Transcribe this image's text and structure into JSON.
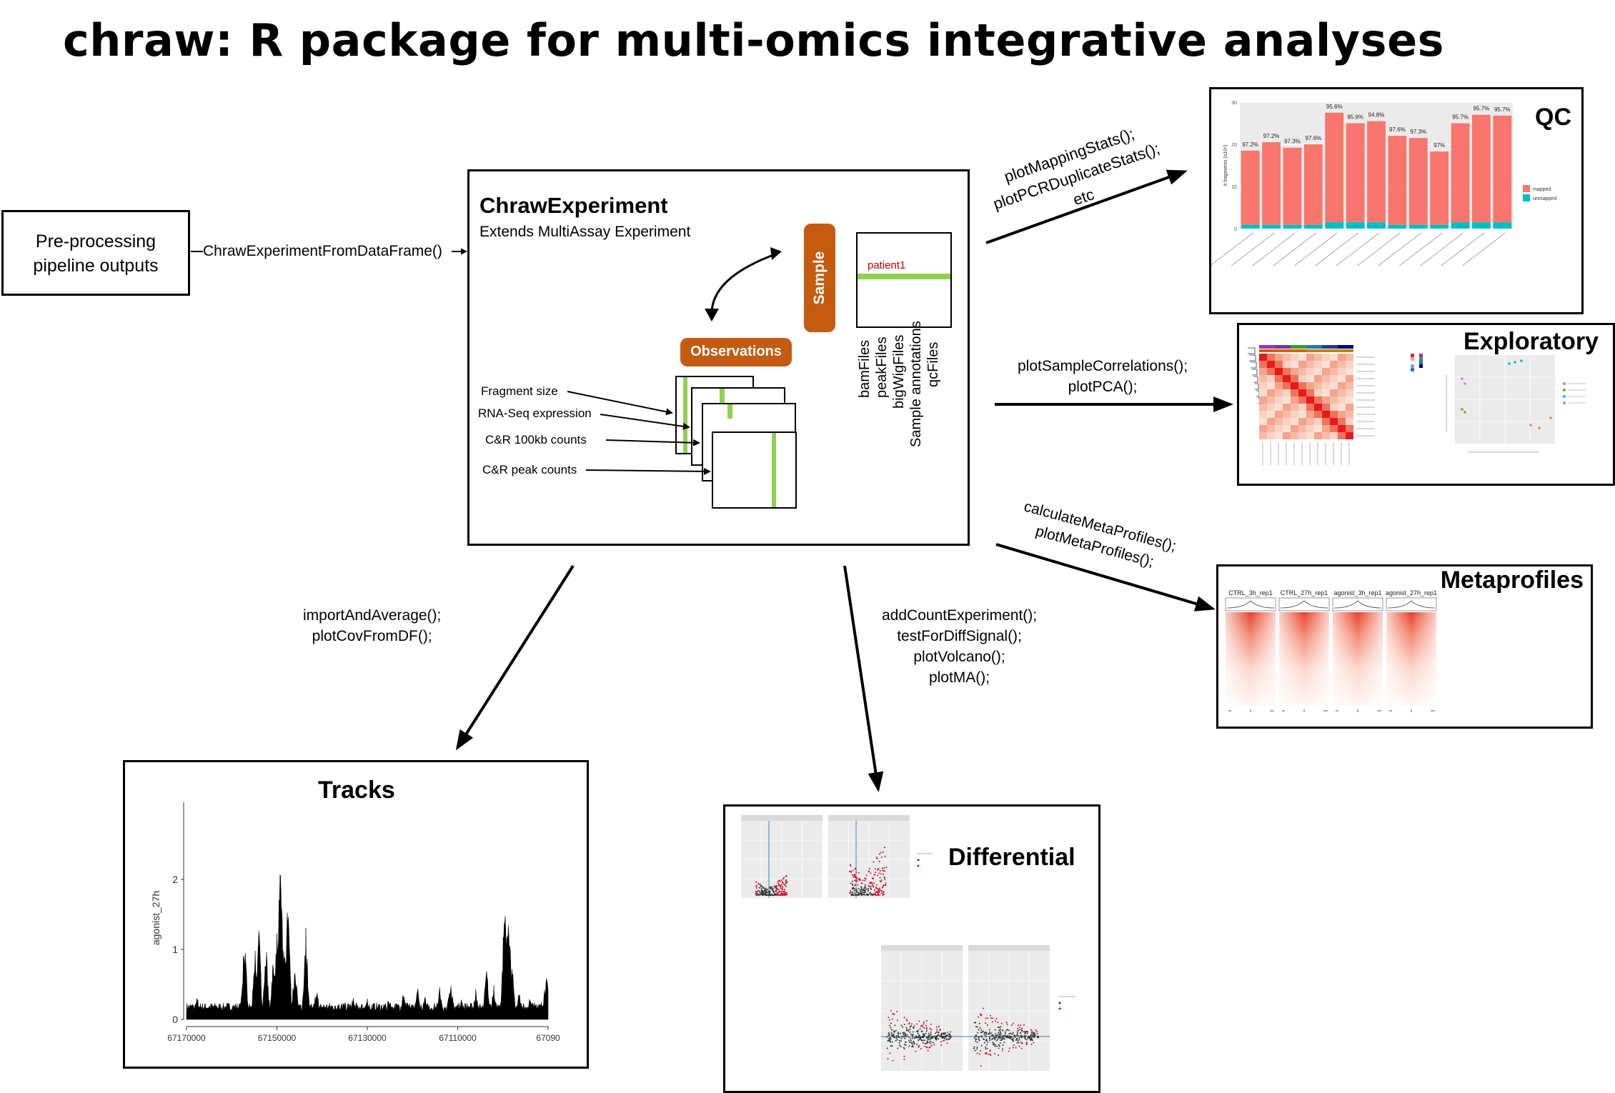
{
  "title": "chraw: R package for multi-omics integrative analyses",
  "preprocessing": {
    "line1": "Pre-processing",
    "line2": "pipeline outputs"
  },
  "connector_fn": "ChrawExperimentFromDataFrame()",
  "experiment": {
    "name": "ChrawExperiment",
    "subtitle": "Extends MultiAssay Experiment",
    "sample_label": "Sample",
    "observations_label": "Observations",
    "patient_label": "patient1",
    "sample_files": [
      "bamFiles",
      "peakFiles",
      "bigWigFiles",
      "Sample annotations",
      "qcFiles"
    ],
    "assays": [
      "Fragment size",
      "RNA-Seq expression",
      "C&R 100kb counts",
      "C&R peak counts"
    ]
  },
  "functions": {
    "qc": [
      "plotMappingStats();",
      "plotPCRDuplicateStats();",
      "etc"
    ],
    "exploratory": [
      "plotSampleCorrelations();",
      "plotPCA();"
    ],
    "metaprofiles": [
      "calculateMetaProfiles();",
      "plotMetaProfiles();"
    ],
    "tracks": [
      "importAndAverage();",
      "plotCovFromDF();"
    ],
    "differential": [
      "addCountExperiment();",
      "testForDiffSignal();",
      "plotVolcano();",
      "plotMA();"
    ]
  },
  "panels": {
    "qc": "QC",
    "exploratory": "Exploratory",
    "metaprofiles": "Metaprofiles",
    "tracks": "Tracks",
    "differential": "Differential"
  },
  "qc_chart": {
    "type": "bar",
    "ylabel": "# fragments (x10⁶)",
    "ylim": [
      0,
      30
    ],
    "yticks": [
      0,
      10,
      20,
      30
    ],
    "labels": [
      "97.2%",
      "97.2%",
      "97.3%",
      "97.6%",
      "95.6%",
      "95.9%",
      "94.8%",
      "97.6%",
      "97.3%",
      "97%",
      "95.7%",
      "95.7%",
      "95.7%"
    ],
    "values": [
      18.5,
      20.5,
      19.2,
      20.0,
      27.5,
      25.0,
      25.5,
      22.0,
      21.5,
      18.3,
      25.0,
      27.0,
      26.8
    ],
    "legend": [
      "mapped",
      "unmapped"
    ],
    "colors": {
      "mapped": "#F8766D",
      "unmapped": "#00BFC4"
    }
  },
  "metaprofile_headers": [
    "CTRL_3h_rep1",
    "CTRL_27h_rep1",
    "agonist_3h_rep1",
    "agonist_27h_rep1"
  ],
  "tracks_chart": {
    "type": "area",
    "ylabel": "agonist_27h",
    "yticks": [
      0,
      1,
      2
    ],
    "xticks": [
      "67170000",
      "67150000",
      "67130000",
      "67110000",
      "67090"
    ]
  }
}
